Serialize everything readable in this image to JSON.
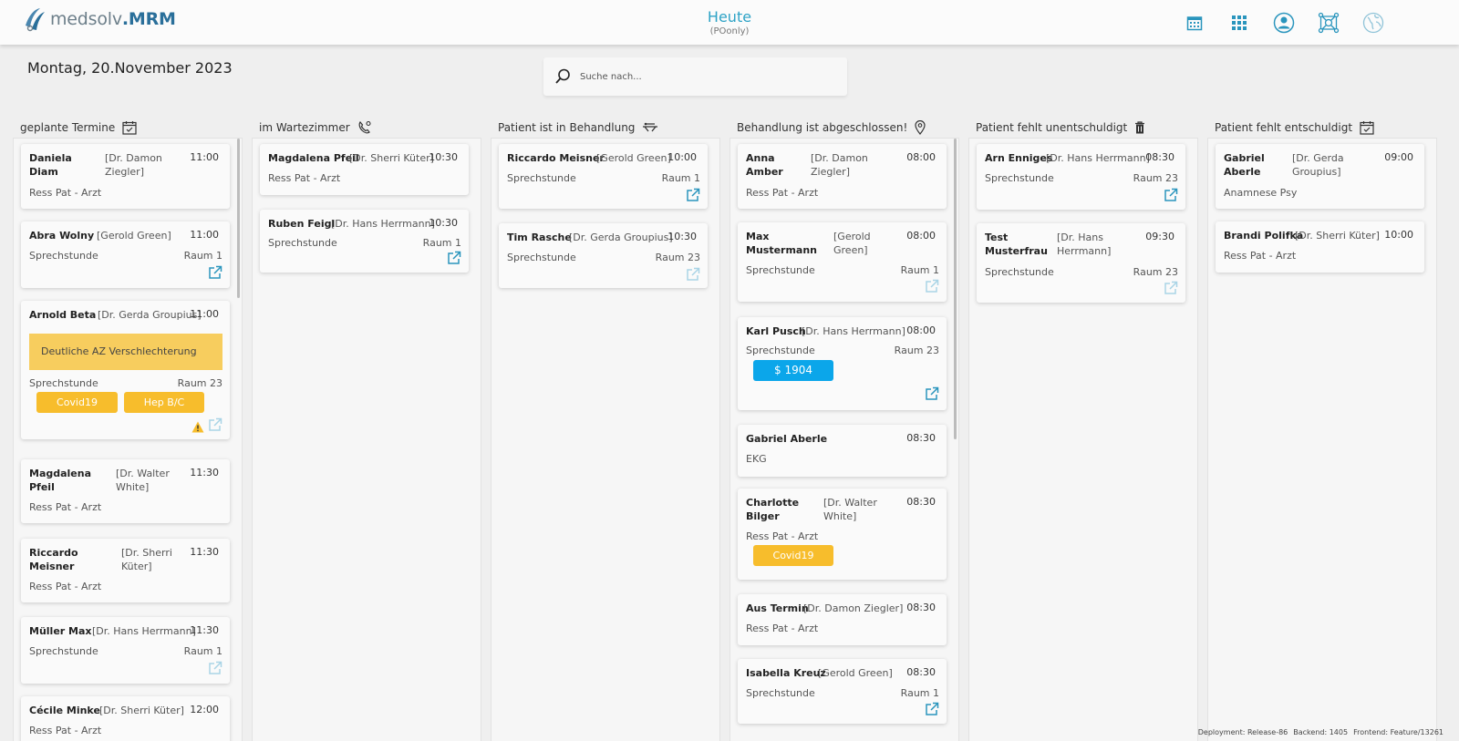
{
  "header": {
    "logo_text": "medsolv",
    "logo_bold": ".MRM",
    "title": "Heute",
    "subtitle": "(POonly)",
    "icons": [
      "calendar-icon",
      "apps-grid-icon",
      "user-profile-icon",
      "network-icon",
      "globe-icon"
    ]
  },
  "date_title": "Montag, 20.November 2023",
  "search": {
    "placeholder": "Suche nach..."
  },
  "columns": [
    {
      "title": "geplante Termine",
      "icon": "calendar-check-icon"
    },
    {
      "title": "im Wartezimmer",
      "icon": "waiting-room-icon"
    },
    {
      "title": "Patient ist in Behandlung",
      "icon": "treatment-bed-icon"
    },
    {
      "title": "Behandlung ist abgeschlossen!",
      "icon": "location-pin-icon"
    },
    {
      "title": "Patient fehlt unentschuldigt",
      "icon": "trash-icon"
    },
    {
      "title": "Patient fehlt entschuldigt",
      "icon": "calendar-check-icon"
    }
  ],
  "cards": {
    "c1": [
      {
        "name1": "Daniela",
        "name2": "Diam",
        "dr1": "[Dr. Damon",
        "dr2": "Ziegler]",
        "time": "11:00",
        "type": "Ress Pat - Arzt"
      },
      {
        "name1": "Abra Wolny",
        "dr1": "[Gerold Green]",
        "time": "11:00",
        "type": "Sprechstunde",
        "room": "Raum 1"
      },
      {
        "name1": "Arnold Beta",
        "dr1": "[Dr. Gerda Groupius]",
        "time": "11:00",
        "note": "Deutliche AZ Verschlechterung",
        "type": "Sprechstunde",
        "room": "Raum 23",
        "tags": [
          "Covid19",
          "Hep B/C"
        ]
      },
      {
        "name1": "Magdalena",
        "name2": "Pfeil",
        "dr1": "[Dr. Walter",
        "dr2": "White]",
        "time": "11:30",
        "type": "Ress Pat - Arzt"
      },
      {
        "name1": "Riccardo",
        "name2": "Meisner",
        "dr1": "[Dr. Sherri",
        "dr2": "Küter]",
        "time": "11:30",
        "type": "Ress Pat - Arzt"
      },
      {
        "name1": "Müller Max",
        "dr1": "[Dr. Hans Herrmann]",
        "time": "11:30",
        "type": "Sprechstunde",
        "room": "Raum 1"
      },
      {
        "name1": "Cécile Minke",
        "dr1": "[Dr. Sherri Küter]",
        "time": "12:00",
        "type": "Ress Pat - Arzt"
      }
    ],
    "c2": [
      {
        "name1": "Magdalena Pfeil",
        "dr1": "[Dr. Sherri Küter]",
        "time": "10:30",
        "type": "Ress Pat - Arzt"
      },
      {
        "name1": "Ruben Feigl",
        "dr1": "[Dr. Hans Herrmann]",
        "time": "10:30",
        "type": "Sprechstunde",
        "room": "Raum 1"
      }
    ],
    "c3": [
      {
        "name1": "Riccardo Meisner",
        "dr1": "[Gerold Green]",
        "time": "10:00",
        "type": "Sprechstunde",
        "room": "Raum 1"
      },
      {
        "name1": "Tim Rasche",
        "dr1": "[Dr. Gerda Groupius]",
        "time": "10:30",
        "type": "Sprechstunde",
        "room": "Raum 23"
      }
    ],
    "c4": [
      {
        "name1": "Anna",
        "name2": "Amber",
        "dr1": "[Dr. Damon",
        "dr2": "Ziegler]",
        "time": "08:00",
        "type": "Ress Pat - Arzt"
      },
      {
        "name1": "Max",
        "name2": "Mustermann",
        "dr1": "[Gerold",
        "dr2": "Green]",
        "time": "08:00",
        "type": "Sprechstunde",
        "room": "Raum 1"
      },
      {
        "name1": "Karl Pusch",
        "dr1": "[Dr. Hans Herrmann]",
        "time": "08:00",
        "type": "Sprechstunde",
        "room": "Raum 23",
        "badge": "$ 1904"
      },
      {
        "name1": "Gabriel Aberle",
        "time": "08:30",
        "type": "EKG"
      },
      {
        "name1": "Charlotte",
        "name2": "Bilger",
        "dr1": "[Dr. Walter",
        "dr2": "White]",
        "time": "08:30",
        "type": "Ress Pat - Arzt",
        "tags": [
          "Covid19"
        ]
      },
      {
        "name1": "Aus Termin",
        "dr1": "[Dr. Damon Ziegler]",
        "time": "08:30",
        "type": "Ress Pat - Arzt"
      },
      {
        "name1": "Isabella Kreuz",
        "dr1": "[Gerold Green]",
        "time": "08:30",
        "type": "Sprechstunde",
        "room": "Raum 1"
      }
    ],
    "c5": [
      {
        "name1": "Arn Enniges",
        "dr1": "[Dr. Hans Herrmann]",
        "time": "08:30",
        "type": "Sprechstunde",
        "room": "Raum 23"
      },
      {
        "name1": "Test",
        "name2": "Musterfrau",
        "dr1": "[Dr. Hans",
        "dr2": "Herrmann]",
        "time": "09:30",
        "type": "Sprechstunde",
        "room": "Raum 23"
      }
    ],
    "c6": [
      {
        "name1": "Gabriel",
        "name2": "Aberle",
        "dr1": "[Dr. Gerda",
        "dr2": "Groupius]",
        "time": "09:00",
        "type": "Anamnese Psy"
      },
      {
        "name1": "Brandi Polifka",
        "dr1": "[Dr. Sherri Küter]",
        "time": "10:00",
        "type": "Ress Pat - Arzt"
      }
    ]
  },
  "footer": {
    "deployment": "Deployment: Release-86",
    "backend": "Backend: 1405",
    "frontend": "Frontend: Feature/13261"
  },
  "colors": {
    "accent": "#2ea3c6",
    "note_yellow": "#f7cd5e",
    "tag_yellow": "#f7bd2c",
    "badge_blue": "#0ba6ea"
  }
}
